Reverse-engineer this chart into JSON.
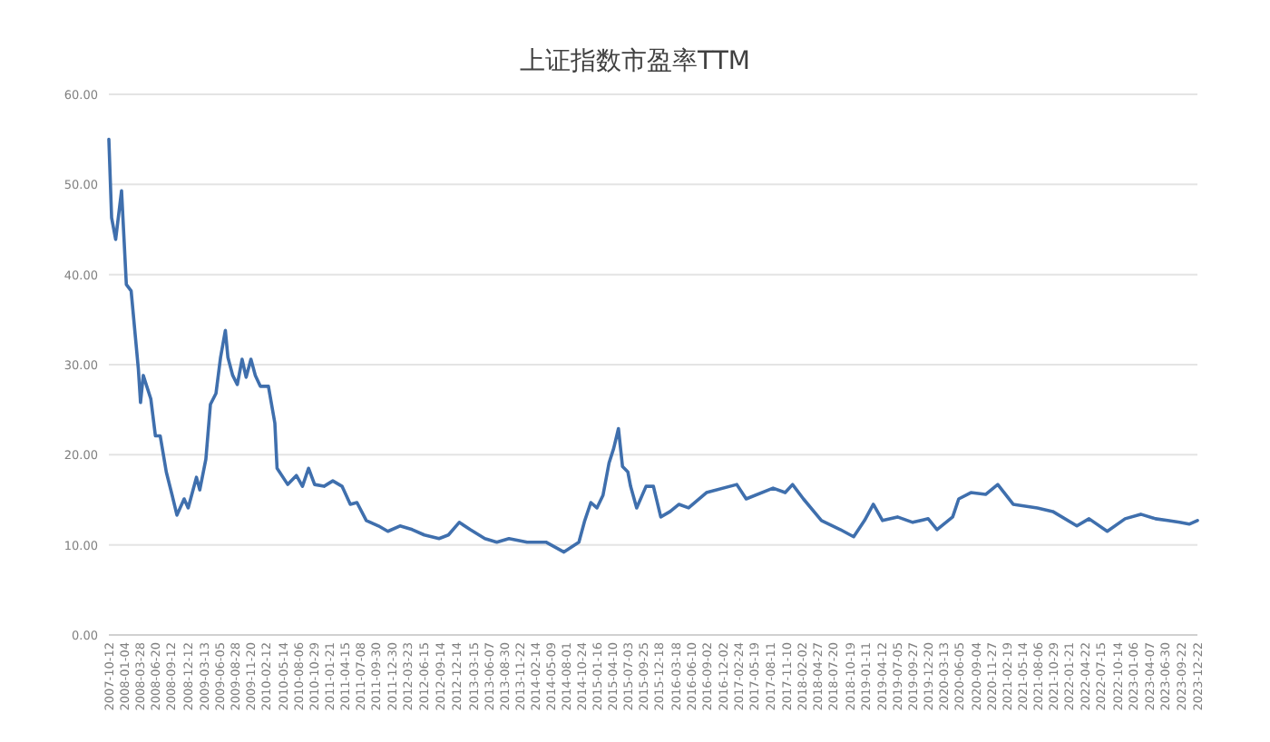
{
  "chart_data": {
    "type": "line",
    "title": "上证指数市盈率TTM",
    "x": [
      "2007-10-12",
      "2007-10-27",
      "2007-11-18",
      "2007-12-20",
      "2008-01-15",
      "2008-02-10",
      "2008-03-20",
      "2008-04-01",
      "2008-04-16",
      "2008-05-27",
      "2008-06-21",
      "2008-07-17",
      "2008-08-19",
      "2008-09-20",
      "2008-10-16",
      "2008-11-24",
      "2008-12-16",
      "2009-01-30",
      "2009-02-17",
      "2009-03-22",
      "2009-04-16",
      "2009-05-16",
      "2009-06-10",
      "2009-07-06",
      "2009-07-20",
      "2009-08-15",
      "2009-09-09",
      "2009-10-05",
      "2009-10-27",
      "2009-11-22",
      "2009-12-16",
      "2010-01-12",
      "2010-02-25",
      "2010-04-01",
      "2010-04-13",
      "2010-06-10",
      "2010-07-27",
      "2010-08-29",
      "2010-10-01",
      "2010-11-03",
      "2010-12-24",
      "2011-02-10",
      "2011-04-01",
      "2011-05-16",
      "2011-06-21",
      "2011-08-11",
      "2011-10-16",
      "2011-12-06",
      "2012-02-10",
      "2012-04-16",
      "2012-06-21",
      "2012-09-09",
      "2012-10-30",
      "2012-12-28",
      "2013-02-25",
      "2013-05-16",
      "2013-07-20",
      "2013-09-24",
      "2014-01-01",
      "2014-04-13",
      "2014-07-20",
      "2014-10-09",
      "2014-11-10",
      "2014-12-13",
      "2015-01-15",
      "2015-02-17",
      "2015-03-22",
      "2015-04-16",
      "2015-05-12",
      "2015-06-03",
      "2015-07-02",
      "2015-07-17",
      "2015-08-19",
      "2015-10-09",
      "2015-11-18",
      "2015-12-28",
      "2016-02-17",
      "2016-04-05",
      "2016-05-27",
      "2016-09-01",
      "2017-02-13",
      "2017-04-05",
      "2017-08-29",
      "2017-11-03",
      "2017-12-13",
      "2018-02-10",
      "2018-05-19",
      "2018-08-29",
      "2018-11-10",
      "2019-01-08",
      "2019-02-25",
      "2019-04-16",
      "2019-07-06",
      "2019-09-27",
      "2019-12-20",
      "2020-02-06",
      "2020-05-01",
      "2020-06-03",
      "2020-08-08",
      "2020-10-27",
      "2021-01-01",
      "2021-03-26",
      "2021-08-04",
      "2021-10-27",
      "2022-03-07",
      "2022-05-12",
      "2022-08-19",
      "2022-11-24",
      "2023-02-17",
      "2023-05-08",
      "2023-07-13",
      "2023-09-16",
      "2023-11-07",
      "2023-12-22"
    ],
    "series": [
      {
        "color": "#3f6fad",
        "values": [
          55.0,
          46.3,
          43.9,
          49.3,
          38.9,
          38.2,
          29.6,
          25.8,
          28.8,
          26.2,
          22.1,
          22.1,
          18.1,
          15.5,
          13.3,
          15.1,
          14.1,
          17.5,
          16.1,
          19.5,
          25.6,
          26.8,
          30.8,
          33.8,
          30.8,
          28.8,
          27.8,
          30.6,
          28.6,
          30.6,
          28.8,
          27.6,
          27.6,
          23.5,
          18.5,
          16.7,
          17.7,
          16.5,
          18.5,
          16.7,
          16.5,
          17.1,
          16.5,
          14.5,
          14.7,
          12.7,
          12.1,
          11.5,
          12.1,
          11.7,
          11.1,
          10.7,
          11.1,
          12.5,
          11.7,
          10.7,
          10.3,
          10.7,
          10.3,
          10.3,
          9.2,
          10.3,
          12.7,
          14.7,
          14.1,
          15.5,
          19.1,
          20.7,
          22.9,
          18.7,
          18.1,
          16.5,
          14.1,
          16.5,
          16.5,
          13.1,
          13.7,
          14.5,
          14.1,
          15.8,
          16.7,
          15.1,
          16.3,
          15.8,
          16.7,
          15.1,
          12.7,
          11.7,
          10.9,
          12.7,
          14.5,
          12.7,
          13.1,
          12.5,
          12.9,
          11.7,
          13.1,
          15.1,
          15.8,
          15.6,
          16.7,
          14.5,
          14.1,
          13.7,
          12.1,
          12.9,
          11.5,
          12.9,
          13.4,
          12.9,
          12.7,
          12.5,
          12.3,
          12.7
        ]
      }
    ],
    "xlim": [
      "2007-10-12",
      "2023-12-22"
    ],
    "xticks": [
      "2007-10-12",
      "2008-01-04",
      "2008-03-28",
      "2008-06-20",
      "2008-09-12",
      "2008-12-12",
      "2009-03-13",
      "2009-06-05",
      "2009-08-28",
      "2009-11-20",
      "2010-02-12",
      "2010-05-14",
      "2010-08-06",
      "2010-10-29",
      "2011-01-21",
      "2011-04-15",
      "2011-07-08",
      "2011-09-30",
      "2011-12-30",
      "2012-03-23",
      "2012-06-15",
      "2012-09-14",
      "2012-12-14",
      "2013-03-15",
      "2013-06-07",
      "2013-08-30",
      "2013-11-22",
      "2014-02-14",
      "2014-05-09",
      "2014-08-01",
      "2014-10-24",
      "2015-01-16",
      "2015-04-10",
      "2015-07-03",
      "2015-09-25",
      "2015-12-18",
      "2016-03-18",
      "2016-06-10",
      "2016-09-02",
      "2016-12-02",
      "2017-02-24",
      "2017-05-19",
      "2017-08-11",
      "2017-11-10",
      "2018-02-02",
      "2018-04-27",
      "2018-07-20",
      "2018-10-19",
      "2019-01-11",
      "2019-04-12",
      "2019-07-05",
      "2019-09-27",
      "2019-12-20",
      "2020-03-13",
      "2020-06-05",
      "2020-09-04",
      "2020-11-27",
      "2021-02-19",
      "2021-05-14",
      "2021-08-06",
      "2021-10-29",
      "2022-01-21",
      "2022-04-22",
      "2022-07-15",
      "2022-10-14",
      "2023-01-06",
      "2023-04-07",
      "2023-06-30",
      "2023-09-22",
      "2023-12-22"
    ],
    "ylim": [
      0,
      60
    ],
    "yticks": [
      {
        "value": 0,
        "label": "0.00"
      },
      {
        "value": 10,
        "label": "10.00"
      },
      {
        "value": 20,
        "label": "20.00"
      },
      {
        "value": 30,
        "label": "30.00"
      },
      {
        "value": 40,
        "label": "40.00"
      },
      {
        "value": 50,
        "label": "50.00"
      },
      {
        "value": 60,
        "label": "60.00"
      }
    ],
    "grid": "y",
    "marker": "none",
    "line_style": "solid"
  }
}
